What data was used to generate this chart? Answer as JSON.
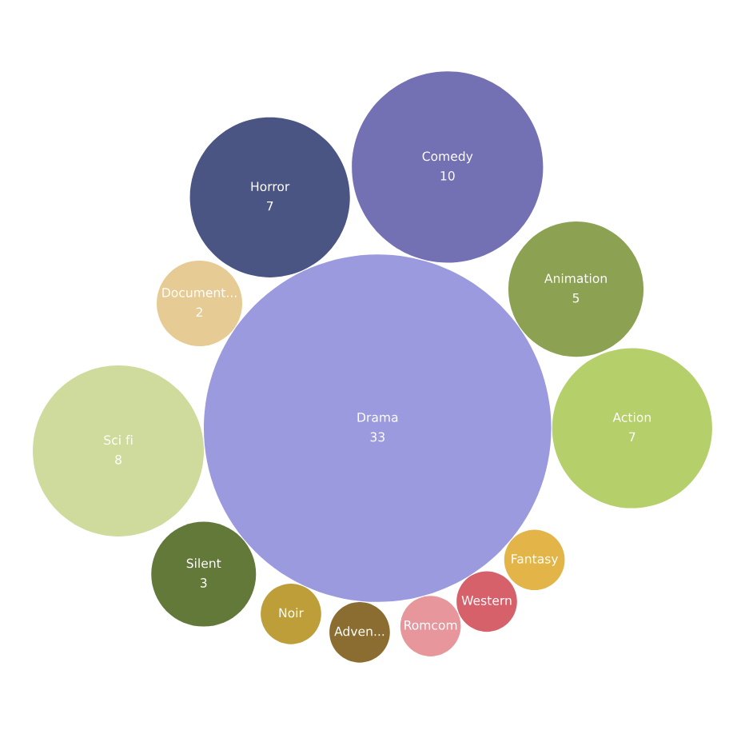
{
  "chart_data": {
    "type": "other",
    "categories": [
      "Fantasy",
      "Action",
      "Drama",
      "Silent",
      "Horror",
      "Noir",
      "Adven...",
      "Comedy",
      "Sci fi",
      "Animation",
      "Document...",
      "Romcom",
      "Western"
    ],
    "values": [
      null,
      7,
      33,
      3,
      7,
      null,
      null,
      10,
      8,
      5,
      2,
      null,
      null
    ],
    "data_labels": true,
    "colors": [
      "#e3b448",
      "#b5cf6b",
      "#9c9ade",
      "#637939",
      "#4a5584",
      "#bd9e39",
      "#8c6d31",
      "#7371b4",
      "#cedb9c",
      "#8ca252",
      "#e7cb94",
      "#e7969c",
      "#d6616b"
    ]
  }
}
